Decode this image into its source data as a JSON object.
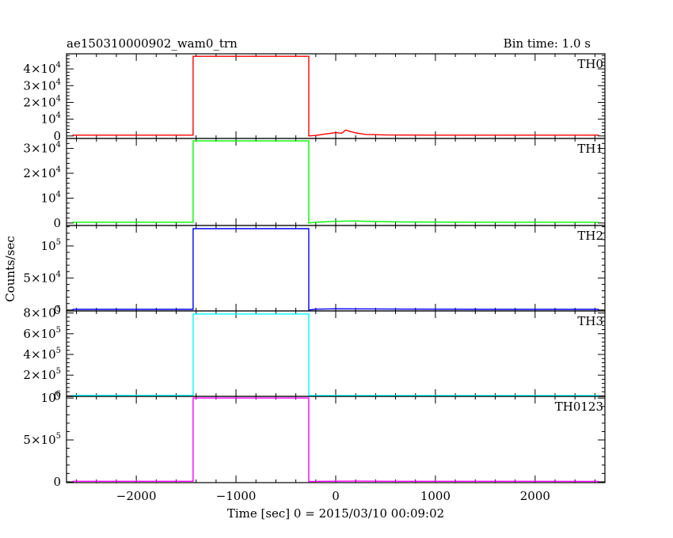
{
  "header": {
    "title": "ae150310000902_wam0_trn",
    "bin_time": "Bin time: 1.0 s"
  },
  "chart_data": {
    "type": "line",
    "xlabel": "Time [sec] 0 = 2015/03/10 00:09:02",
    "ylabel": "Counts/sec",
    "xlim": [
      -2700,
      2700
    ],
    "x_ticks": [
      -2000,
      -1000,
      0,
      1000,
      2000
    ],
    "x_tick_labels": [
      "−2000",
      "−1000",
      "0",
      "1000",
      "2000"
    ],
    "grid": false,
    "panels": [
      {
        "name": "TH0",
        "color": "#ff0000",
        "ylim": [
          -1500,
          49000
        ],
        "y_tick_labels": [
          {
            "value": 0,
            "mant": "0",
            "exp": ""
          },
          {
            "value": 10000,
            "mant": "10",
            "exp": "4"
          },
          {
            "value": 20000,
            "mant": "2×10",
            "exp": "4"
          },
          {
            "value": 30000,
            "mant": "3×10",
            "exp": "4"
          },
          {
            "value": 40000,
            "mant": "4×10",
            "exp": "4"
          }
        ],
        "points": [
          [
            -2640,
            500
          ],
          [
            -1430,
            500
          ],
          [
            -1430,
            47500
          ],
          [
            -270,
            47500
          ],
          [
            -270,
            0
          ],
          [
            -200,
            300
          ],
          [
            -100,
            1200
          ],
          [
            0,
            2000
          ],
          [
            60,
            1600
          ],
          [
            100,
            3500
          ],
          [
            140,
            2800
          ],
          [
            200,
            1800
          ],
          [
            300,
            900
          ],
          [
            500,
            600
          ],
          [
            1000,
            500
          ],
          [
            2000,
            500
          ],
          [
            2640,
            500
          ]
        ]
      },
      {
        "name": "TH1",
        "color": "#00ff00",
        "ylim": [
          -1000,
          34000
        ],
        "y_tick_labels": [
          {
            "value": 0,
            "mant": "0",
            "exp": ""
          },
          {
            "value": 10000,
            "mant": "10",
            "exp": "4"
          },
          {
            "value": 20000,
            "mant": "2×10",
            "exp": "4"
          },
          {
            "value": 30000,
            "mant": "3×10",
            "exp": "4"
          }
        ],
        "points": [
          [
            -2640,
            300
          ],
          [
            -1430,
            300
          ],
          [
            -1430,
            33000
          ],
          [
            -270,
            33000
          ],
          [
            -270,
            0
          ],
          [
            -200,
            300
          ],
          [
            0,
            700
          ],
          [
            200,
            800
          ],
          [
            400,
            600
          ],
          [
            700,
            400
          ],
          [
            1500,
            300
          ],
          [
            2640,
            300
          ]
        ]
      },
      {
        "name": "TH2",
        "color": "#0000ff",
        "ylim": [
          -1500,
          132000
        ],
        "y_tick_labels": [
          {
            "value": 0,
            "mant": "0",
            "exp": ""
          },
          {
            "value": 50000,
            "mant": "5×10",
            "exp": "4"
          },
          {
            "value": 100000,
            "mant": "10",
            "exp": "5"
          }
        ],
        "points": [
          [
            -2640,
            1000
          ],
          [
            -1430,
            1000
          ],
          [
            -1430,
            127000
          ],
          [
            -270,
            127000
          ],
          [
            -270,
            0
          ],
          [
            -200,
            1200
          ],
          [
            0,
            1800
          ],
          [
            500,
            1500
          ],
          [
            1500,
            1000
          ],
          [
            2640,
            1000
          ]
        ]
      },
      {
        "name": "TH3",
        "color": "#00ffff",
        "ylim": [
          -5000,
          820000
        ],
        "y_tick_labels": [
          {
            "value": 0,
            "mant": "0",
            "exp": ""
          },
          {
            "value": 200000,
            "mant": "2×10",
            "exp": "5"
          },
          {
            "value": 400000,
            "mant": "4×10",
            "exp": "5"
          },
          {
            "value": 600000,
            "mant": "6×10",
            "exp": "5"
          },
          {
            "value": 800000,
            "mant": "8×10",
            "exp": "5"
          }
        ],
        "points": [
          [
            -2640,
            5000
          ],
          [
            -1430,
            5000
          ],
          [
            -1430,
            790000
          ],
          [
            -270,
            790000
          ],
          [
            -270,
            3000
          ],
          [
            2640,
            3000
          ]
        ]
      },
      {
        "name": "TH0123",
        "color": "#ff00ff",
        "ylim": [
          -10000,
          1020000
        ],
        "y_tick_labels": [
          {
            "value": 0,
            "mant": "0",
            "exp": ""
          },
          {
            "value": 500000,
            "mant": "5×10",
            "exp": "5"
          },
          {
            "value": 1000000,
            "mant": "10",
            "exp": "6"
          }
        ],
        "points": [
          [
            -2640,
            6000
          ],
          [
            -1430,
            6000
          ],
          [
            -1430,
            1000000
          ],
          [
            -270,
            1000000
          ],
          [
            -270,
            3000
          ],
          [
            -100,
            6000
          ],
          [
            200,
            8000
          ],
          [
            600,
            6000
          ],
          [
            2640,
            5000
          ]
        ]
      }
    ]
  }
}
